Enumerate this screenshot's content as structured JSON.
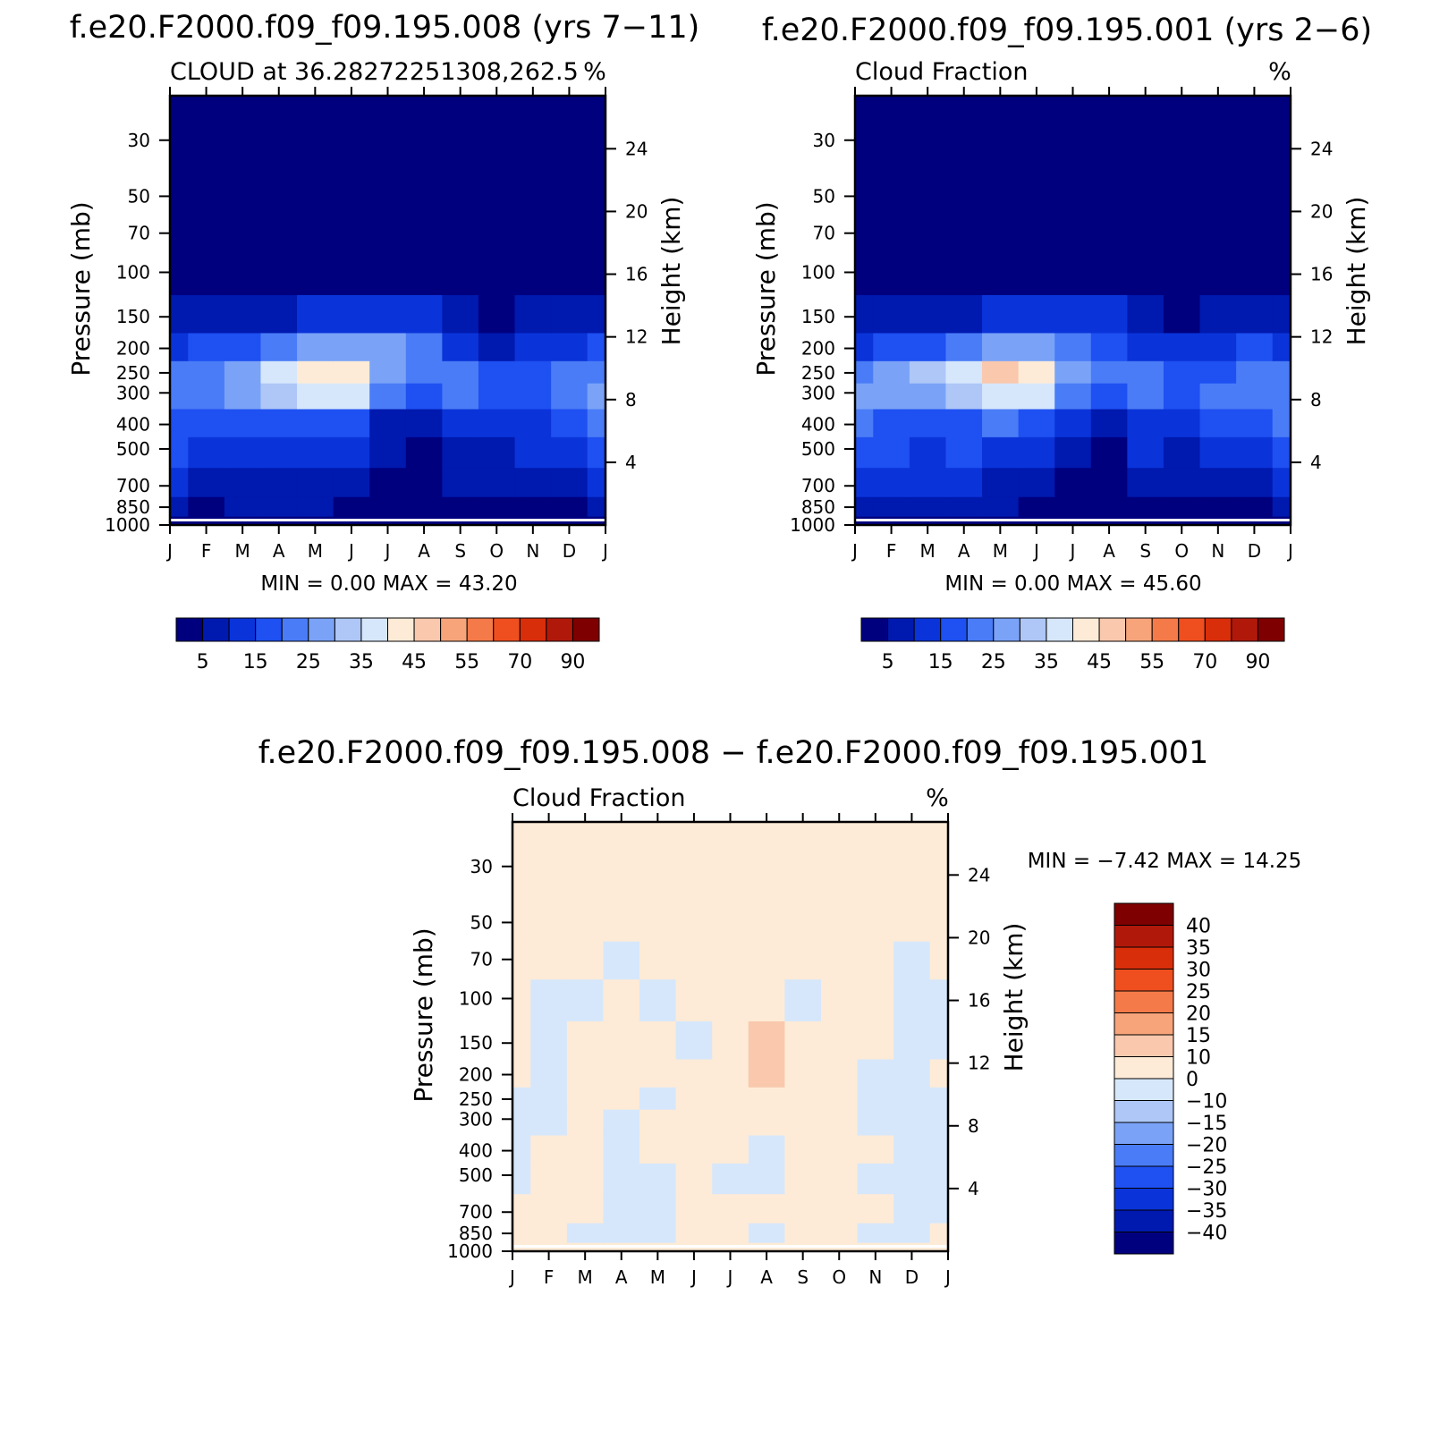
{
  "page": {
    "title_left": "f.e20.F2000.f09_f09.195.008 (yrs 7−11)",
    "title_right": "f.e20.F2000.f09_f09.195.001 (yrs 2−6)",
    "title_bottom": "f.e20.F2000.f09_f09.195.008 − f.e20.F2000.f09_f09.195.001"
  },
  "colors": {
    "abs_scale": [
      "#00007f",
      "#0019af",
      "#0a34d9",
      "#1e50f2",
      "#4a7cf7",
      "#7aa3f7",
      "#aec7f7",
      "#d6e7fb",
      "#fdebd7",
      "#f9c8ad",
      "#f7a47a",
      "#f47a49",
      "#ef4f1e",
      "#d92e0a",
      "#b0190a",
      "#7f0000"
    ],
    "diff_scale": [
      "#00007f",
      "#0019af",
      "#0a34d9",
      "#1e50f2",
      "#4a7cf7",
      "#7aa3f7",
      "#aec7f7",
      "#d6e7fb",
      "#fdebd7",
      "#f9c8ad",
      "#f7a47a",
      "#f47a49",
      "#ef4f1e",
      "#d92e0a",
      "#b0190a",
      "#7f0000"
    ]
  },
  "chart_data": [
    {
      "type": "heatmap",
      "id": "left",
      "subtitle_left": "CLOUD at 36.28272251308,262.5",
      "subtitle_right": "%",
      "ylabel": "Pressure (mb)",
      "y2label": "Height (km)",
      "x_ticks": [
        "J",
        "F",
        "M",
        "A",
        "M",
        "J",
        "J",
        "A",
        "S",
        "O",
        "N",
        "D",
        "J"
      ],
      "y_ticks": [
        30,
        50,
        70,
        100,
        150,
        200,
        250,
        300,
        400,
        500,
        700,
        850,
        1000
      ],
      "y2_ticks": [
        24,
        20,
        16,
        12,
        8,
        4
      ],
      "y_scale": "log",
      "min_label": "MIN =",
      "min_value": "0.00",
      "max_label": "MAX =",
      "max_value": "43.20",
      "levels": [
        5,
        10,
        15,
        20,
        25,
        30,
        35,
        40,
        45,
        50,
        55,
        60,
        70,
        80,
        90
      ],
      "colorbar_labels": [
        "5",
        "15",
        "25",
        "35",
        "45",
        "55",
        "70",
        "90"
      ],
      "pressure_levels": [
        1000,
        850,
        700,
        500,
        400,
        300,
        250,
        200,
        150,
        100,
        70,
        50,
        30
      ],
      "values": [
        [
          2,
          2,
          2,
          2,
          2,
          2,
          2,
          2,
          2,
          2,
          2,
          2,
          2
        ],
        [
          6,
          4,
          6,
          6,
          5,
          4,
          3,
          2,
          4,
          3,
          3,
          3,
          7
        ],
        [
          11,
          9,
          9,
          9,
          9,
          7,
          4,
          3,
          6,
          5,
          6,
          8,
          12
        ],
        [
          15,
          14,
          13,
          14,
          13,
          11,
          5,
          4,
          9,
          8,
          10,
          12,
          17
        ],
        [
          19,
          18,
          17,
          18,
          19,
          17,
          9,
          6,
          13,
          12,
          14,
          17,
          22
        ],
        [
          24,
          24,
          25,
          30,
          36,
          35,
          24,
          18,
          20,
          16,
          18,
          22,
          25
        ],
        [
          22,
          24,
          27,
          35,
          43,
          41,
          27,
          21,
          21,
          16,
          17,
          21,
          22
        ],
        [
          13,
          16,
          18,
          22,
          27,
          28,
          25,
          20,
          13,
          9,
          11,
          14,
          15
        ],
        [
          5,
          6,
          7,
          8,
          10,
          12,
          13,
          12,
          6,
          3,
          5,
          6,
          6
        ],
        [
          1,
          1,
          1,
          1,
          1,
          1,
          2,
          2,
          1,
          1,
          1,
          1,
          1
        ],
        [
          0,
          0,
          0,
          0,
          0,
          0,
          0,
          0,
          0,
          0,
          0,
          0,
          0
        ],
        [
          0,
          0,
          0,
          0,
          0,
          0,
          0,
          0,
          0,
          0,
          0,
          0,
          0
        ],
        [
          0,
          0,
          0,
          0,
          0,
          0,
          0,
          0,
          0,
          0,
          0,
          0,
          0
        ]
      ]
    },
    {
      "type": "heatmap",
      "id": "right",
      "subtitle_left": "Cloud Fraction",
      "subtitle_right": "%",
      "ylabel": "Pressure (mb)",
      "y2label": "Height (km)",
      "x_ticks": [
        "J",
        "F",
        "M",
        "A",
        "M",
        "J",
        "J",
        "A",
        "S",
        "O",
        "N",
        "D",
        "J"
      ],
      "y_ticks": [
        30,
        50,
        70,
        100,
        150,
        200,
        250,
        300,
        400,
        500,
        700,
        850,
        1000
      ],
      "y2_ticks": [
        24,
        20,
        16,
        12,
        8,
        4
      ],
      "y_scale": "log",
      "min_label": "MIN =",
      "min_value": "0.00",
      "max_label": "MAX =",
      "max_value": "45.60",
      "levels": [
        5,
        10,
        15,
        20,
        25,
        30,
        35,
        40,
        45,
        50,
        55,
        60,
        70,
        80,
        90
      ],
      "colorbar_labels": [
        "5",
        "15",
        "25",
        "35",
        "45",
        "55",
        "70",
        "90"
      ],
      "pressure_levels": [
        1000,
        850,
        700,
        500,
        400,
        300,
        250,
        200,
        150,
        100,
        70,
        50,
        30
      ],
      "values": [
        [
          2,
          2,
          2,
          2,
          2,
          2,
          2,
          2,
          2,
          2,
          2,
          2,
          2
        ],
        [
          7,
          5,
          6,
          6,
          5,
          4,
          3,
          2,
          4,
          3,
          3,
          3,
          8
        ],
        [
          11,
          10,
          10,
          10,
          9,
          7,
          4,
          3,
          7,
          6,
          7,
          9,
          12
        ],
        [
          16,
          15,
          14,
          15,
          14,
          11,
          6,
          4,
          10,
          9,
          11,
          13,
          17
        ],
        [
          20,
          19,
          18,
          19,
          20,
          18,
          10,
          7,
          14,
          13,
          15,
          17,
          22
        ],
        [
          26,
          28,
          29,
          32,
          38,
          36,
          24,
          18,
          22,
          18,
          20,
          22,
          24
        ],
        [
          24,
          27,
          30,
          37,
          45,
          40,
          26,
          20,
          22,
          18,
          19,
          21,
          21
        ],
        [
          14,
          17,
          19,
          23,
          28,
          27,
          23,
          18,
          14,
          10,
          12,
          15,
          14
        ],
        [
          5,
          6,
          7,
          8,
          10,
          11,
          12,
          10,
          6,
          3,
          5,
          6,
          6
        ],
        [
          1,
          1,
          1,
          1,
          1,
          1,
          2,
          2,
          1,
          1,
          1,
          1,
          1
        ],
        [
          0,
          0,
          0,
          0,
          0,
          0,
          0,
          0,
          0,
          0,
          0,
          0,
          0
        ],
        [
          0,
          0,
          0,
          0,
          0,
          0,
          0,
          0,
          0,
          0,
          0,
          0,
          0
        ],
        [
          0,
          0,
          0,
          0,
          0,
          0,
          0,
          0,
          0,
          0,
          0,
          0,
          0
        ]
      ]
    },
    {
      "type": "heatmap",
      "id": "diff",
      "subtitle_left": "Cloud Fraction",
      "subtitle_right": "%",
      "ylabel": "Pressure (mb)",
      "y2label": "Height (km)",
      "x_ticks": [
        "J",
        "F",
        "M",
        "A",
        "M",
        "J",
        "J",
        "A",
        "S",
        "O",
        "N",
        "D",
        "J"
      ],
      "y_ticks": [
        30,
        50,
        70,
        100,
        150,
        200,
        250,
        300,
        400,
        500,
        700,
        850,
        1000
      ],
      "y2_ticks": [
        24,
        20,
        16,
        12,
        8,
        4
      ],
      "y_scale": "log",
      "min_label": "MIN =",
      "min_value": "−7.42",
      "max_label": "MAX =",
      "max_value": "14.25",
      "levels": [
        -40,
        -35,
        -30,
        -25,
        -20,
        -15,
        -10,
        0,
        10,
        15,
        20,
        25,
        30,
        35,
        40
      ],
      "colorbar_labels": [
        "40",
        "35",
        "30",
        "25",
        "20",
        "15",
        "10",
        "0",
        "−10",
        "−15",
        "−20",
        "−25",
        "−30",
        "−35",
        "−40"
      ],
      "pressure_levels": [
        1000,
        850,
        700,
        500,
        400,
        300,
        250,
        200,
        150,
        100,
        70,
        50,
        30
      ],
      "values": [
        [
          1,
          1,
          1,
          1,
          1,
          1,
          1,
          1,
          1,
          1,
          1,
          1,
          1
        ],
        [
          1,
          1,
          -1,
          -1,
          -2,
          1,
          1,
          -1,
          1,
          1,
          -1,
          -2,
          1
        ],
        [
          1,
          1,
          1,
          -1,
          -1,
          1,
          1,
          1,
          1,
          1,
          1,
          -1,
          -1
        ],
        [
          -1,
          1,
          1,
          -1,
          -1,
          1,
          -1,
          -1,
          1,
          1,
          -1,
          -1,
          -1
        ],
        [
          -1,
          1,
          1,
          -1,
          1,
          1,
          1,
          -1,
          1,
          1,
          1,
          -1,
          -1
        ],
        [
          -1,
          -1,
          1,
          -1,
          1,
          1,
          1,
          1,
          1,
          1,
          -1,
          -1,
          -1
        ],
        [
          -1,
          -1,
          1,
          1,
          -1,
          1,
          1,
          1,
          1,
          1,
          -1,
          -1,
          -1
        ],
        [
          1,
          -1,
          1,
          1,
          1,
          1,
          1,
          12,
          1,
          1,
          -1,
          -1,
          1
        ],
        [
          1,
          -1,
          1,
          1,
          1,
          -1,
          1,
          11,
          1,
          1,
          1,
          -1,
          -1
        ],
        [
          1,
          -1,
          -1,
          1,
          -1,
          1,
          1,
          1,
          -1,
          1,
          1,
          -1,
          -1
        ],
        [
          1,
          1,
          1,
          -1,
          1,
          1,
          1,
          1,
          1,
          1,
          1,
          -1,
          1
        ],
        [
          1,
          1,
          1,
          1,
          1,
          1,
          1,
          1,
          1,
          1,
          1,
          1,
          1
        ],
        [
          1,
          1,
          1,
          1,
          1,
          1,
          1,
          1,
          1,
          1,
          1,
          1,
          1
        ]
      ]
    }
  ]
}
